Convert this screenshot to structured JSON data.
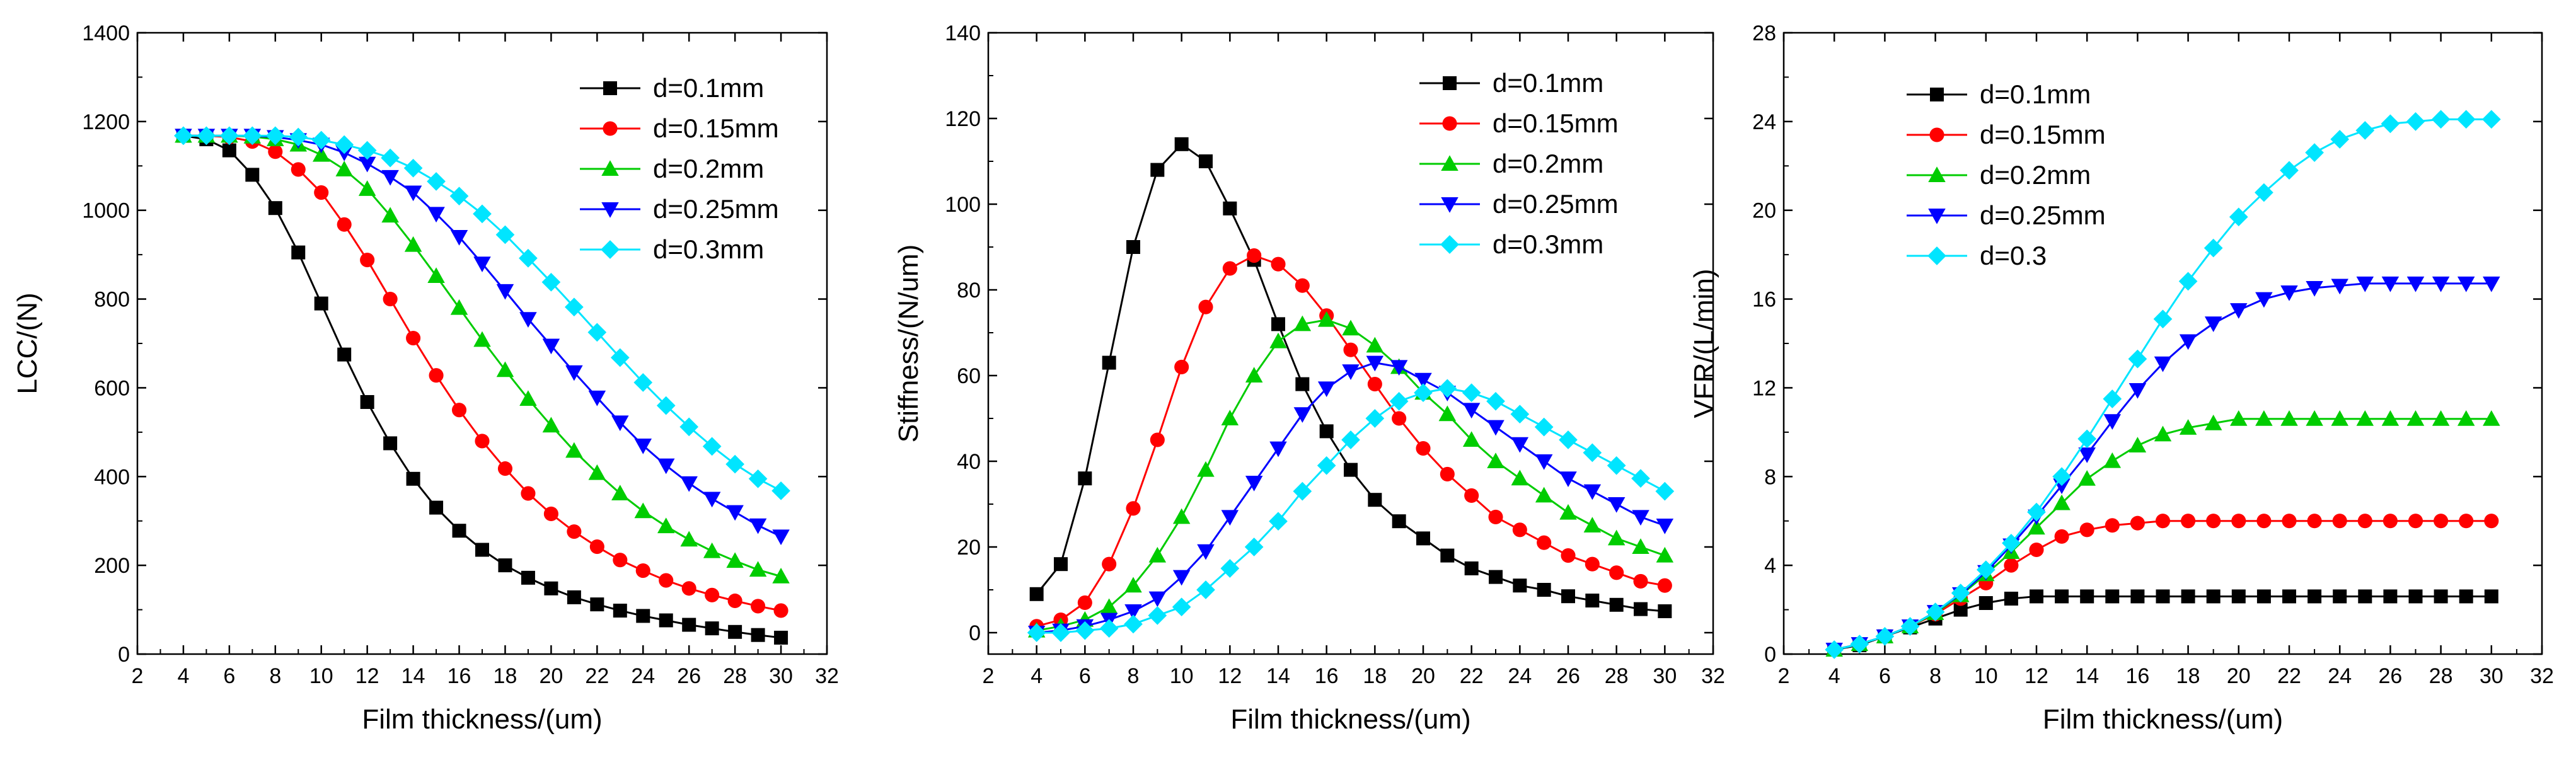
{
  "colors": {
    "d01": "#000000",
    "d015": "#ff0000",
    "d02": "#00cc00",
    "d025": "#0000ff",
    "d03": "#00e5ff"
  },
  "chart_data": [
    {
      "type": "line",
      "xlabel": "Film thickness/(um)",
      "ylabel": "LCC/(N)",
      "xlim": [
        2,
        32
      ],
      "ylim": [
        0,
        1400
      ],
      "xticks": [
        2,
        4,
        6,
        8,
        10,
        12,
        14,
        16,
        18,
        20,
        22,
        24,
        26,
        28,
        30,
        32
      ],
      "yticks": [
        0,
        200,
        400,
        600,
        800,
        1000,
        1200,
        1400
      ],
      "grid": false,
      "legend": "top-right",
      "x": [
        4,
        5,
        6,
        7,
        8,
        9,
        10,
        11,
        12,
        13,
        14,
        15,
        16,
        17,
        18,
        19,
        20,
        21,
        22,
        23,
        24,
        25,
        26,
        27,
        28,
        29,
        30
      ],
      "series": [
        {
          "name": "d=0.1mm",
          "color": "#000000",
          "marker": "square",
          "values": [
            1168,
            1160,
            1135,
            1080,
            1005,
            905,
            790,
            675,
            568,
            475,
            395,
            330,
            278,
            235,
            200,
            172,
            148,
            128,
            112,
            98,
            86,
            76,
            66,
            58,
            50,
            43,
            37
          ]
        },
        {
          "name": "d=0.15mm",
          "color": "#ff0000",
          "marker": "circle",
          "values": [
            1168,
            1168,
            1165,
            1155,
            1132,
            1092,
            1040,
            968,
            888,
            800,
            712,
            628,
            550,
            480,
            418,
            362,
            316,
            276,
            242,
            212,
            188,
            166,
            148,
            133,
            120,
            108,
            98
          ]
        },
        {
          "name": "d=0.2mm",
          "color": "#00cc00",
          "marker": "triangle-up",
          "values": [
            1168,
            1168,
            1168,
            1166,
            1160,
            1148,
            1125,
            1092,
            1048,
            988,
            922,
            852,
            780,
            708,
            640,
            575,
            515,
            458,
            408,
            362,
            322,
            288,
            258,
            232,
            210,
            190,
            175
          ]
        },
        {
          "name": "d=0.25mm",
          "color": "#0000ff",
          "marker": "triangle-down",
          "values": [
            1168,
            1168,
            1168,
            1168,
            1165,
            1158,
            1148,
            1130,
            1105,
            1075,
            1040,
            992,
            940,
            880,
            818,
            755,
            695,
            635,
            578,
            522,
            470,
            425,
            385,
            350,
            320,
            290,
            265
          ]
        },
        {
          "name": "d=0.3mm",
          "color": "#00e5ff",
          "marker": "diamond",
          "values": [
            1168,
            1168,
            1168,
            1168,
            1168,
            1165,
            1158,
            1148,
            1135,
            1118,
            1095,
            1065,
            1032,
            992,
            945,
            892,
            838,
            782,
            725,
            668,
            612,
            560,
            512,
            468,
            428,
            395,
            368
          ]
        }
      ]
    },
    {
      "type": "line",
      "xlabel": "Film thickness/(um)",
      "ylabel": "Stiffness/(N/um)",
      "xlim": [
        2,
        32
      ],
      "ylim": [
        -5,
        140
      ],
      "xticks": [
        2,
        4,
        6,
        8,
        10,
        12,
        14,
        16,
        18,
        20,
        22,
        24,
        26,
        28,
        30,
        32
      ],
      "yticks": [
        0,
        20,
        40,
        60,
        80,
        100,
        120,
        140
      ],
      "grid": false,
      "legend": "top-right",
      "x": [
        4,
        5,
        6,
        7,
        8,
        9,
        10,
        11,
        12,
        13,
        14,
        15,
        16,
        17,
        18,
        19,
        20,
        21,
        22,
        23,
        24,
        25,
        26,
        27,
        28,
        29,
        30
      ],
      "series": [
        {
          "name": "d=0.1mm",
          "color": "#000000",
          "marker": "square",
          "values": [
            9,
            16,
            36,
            63,
            90,
            108,
            114,
            110,
            99,
            87,
            72,
            58,
            47,
            38,
            31,
            26,
            22,
            18,
            15,
            13,
            11,
            10,
            8.5,
            7.5,
            6.5,
            5.5,
            5
          ]
        },
        {
          "name": "d=0.15mm",
          "color": "#ff0000",
          "marker": "circle",
          "values": [
            1.5,
            3,
            7,
            16,
            29,
            45,
            62,
            76,
            85,
            88,
            86,
            81,
            74,
            66,
            58,
            50,
            43,
            37,
            32,
            27,
            24,
            21,
            18,
            16,
            14,
            12,
            11
          ]
        },
        {
          "name": "d=0.2mm",
          "color": "#00cc00",
          "marker": "triangle-up",
          "values": [
            0.5,
            1.5,
            3,
            6,
            11,
            18,
            27,
            38,
            50,
            60,
            68,
            72,
            73,
            71,
            67,
            62,
            56,
            51,
            45,
            40,
            36,
            32,
            28,
            25,
            22,
            20,
            18
          ]
        },
        {
          "name": "d=0.25mm",
          "color": "#0000ff",
          "marker": "triangle-down",
          "values": [
            0,
            0.5,
            1.5,
            3,
            5,
            8,
            13,
            19,
            27,
            35,
            43,
            51,
            57,
            61,
            63,
            62,
            59,
            56,
            52,
            48,
            44,
            40,
            36,
            33,
            30,
            27,
            25
          ]
        },
        {
          "name": "d=0.3mm",
          "color": "#00e5ff",
          "marker": "diamond",
          "values": [
            0,
            0,
            0.5,
            1,
            2,
            4,
            6,
            10,
            15,
            20,
            26,
            33,
            39,
            45,
            50,
            54,
            56,
            57,
            56,
            54,
            51,
            48,
            45,
            42,
            39,
            36,
            33
          ]
        }
      ]
    },
    {
      "type": "line",
      "xlabel": "Film thickness/(um)",
      "ylabel": "VFR/(L/min)",
      "xlim": [
        2,
        32
      ],
      "ylim": [
        0,
        28
      ],
      "xticks": [
        2,
        4,
        6,
        8,
        10,
        12,
        14,
        16,
        18,
        20,
        22,
        24,
        26,
        28,
        30,
        32
      ],
      "yticks": [
        0,
        4,
        8,
        12,
        16,
        20,
        24,
        28
      ],
      "grid": false,
      "legend": "top-left",
      "x": [
        4,
        5,
        6,
        7,
        8,
        9,
        10,
        11,
        12,
        13,
        14,
        15,
        16,
        17,
        18,
        19,
        20,
        21,
        22,
        23,
        24,
        25,
        26,
        27,
        28,
        29,
        30
      ],
      "series": [
        {
          "name": "d=0.1mm",
          "color": "#000000",
          "marker": "square",
          "values": [
            0.2,
            0.4,
            0.8,
            1.2,
            1.6,
            2.0,
            2.3,
            2.5,
            2.6,
            2.6,
            2.6,
            2.6,
            2.6,
            2.6,
            2.6,
            2.6,
            2.6,
            2.6,
            2.6,
            2.6,
            2.6,
            2.6,
            2.6,
            2.6,
            2.6,
            2.6,
            2.6
          ]
        },
        {
          "name": "d=0.15mm",
          "color": "#ff0000",
          "marker": "circle",
          "values": [
            0.2,
            0.45,
            0.8,
            1.25,
            1.8,
            2.5,
            3.2,
            4.0,
            4.7,
            5.3,
            5.6,
            5.8,
            5.9,
            6.0,
            6.0,
            6.0,
            6.0,
            6.0,
            6.0,
            6.0,
            6.0,
            6.0,
            6.0,
            6.0,
            6.0,
            6.0,
            6.0
          ]
        },
        {
          "name": "d=0.2mm",
          "color": "#00cc00",
          "marker": "triangle-up",
          "values": [
            0.2,
            0.45,
            0.8,
            1.25,
            1.85,
            2.65,
            3.6,
            4.6,
            5.7,
            6.8,
            7.9,
            8.7,
            9.4,
            9.9,
            10.2,
            10.4,
            10.6,
            10.6,
            10.6,
            10.6,
            10.6,
            10.6,
            10.6,
            10.6,
            10.6,
            10.6,
            10.6
          ]
        },
        {
          "name": "d=0.25mm",
          "color": "#0000ff",
          "marker": "triangle-down",
          "values": [
            0.2,
            0.45,
            0.8,
            1.25,
            1.9,
            2.7,
            3.7,
            4.9,
            6.2,
            7.6,
            9.0,
            10.5,
            11.9,
            13.1,
            14.1,
            14.9,
            15.5,
            16.0,
            16.3,
            16.5,
            16.6,
            16.7,
            16.7,
            16.7,
            16.7,
            16.7,
            16.7
          ]
        },
        {
          "name": "d=0.3",
          "color": "#00e5ff",
          "marker": "diamond",
          "values": [
            0.2,
            0.45,
            0.8,
            1.25,
            1.9,
            2.75,
            3.8,
            5.0,
            6.4,
            8.0,
            9.7,
            11.5,
            13.3,
            15.1,
            16.8,
            18.3,
            19.7,
            20.8,
            21.8,
            22.6,
            23.2,
            23.6,
            23.9,
            24.0,
            24.1,
            24.1,
            24.1
          ]
        }
      ]
    }
  ]
}
